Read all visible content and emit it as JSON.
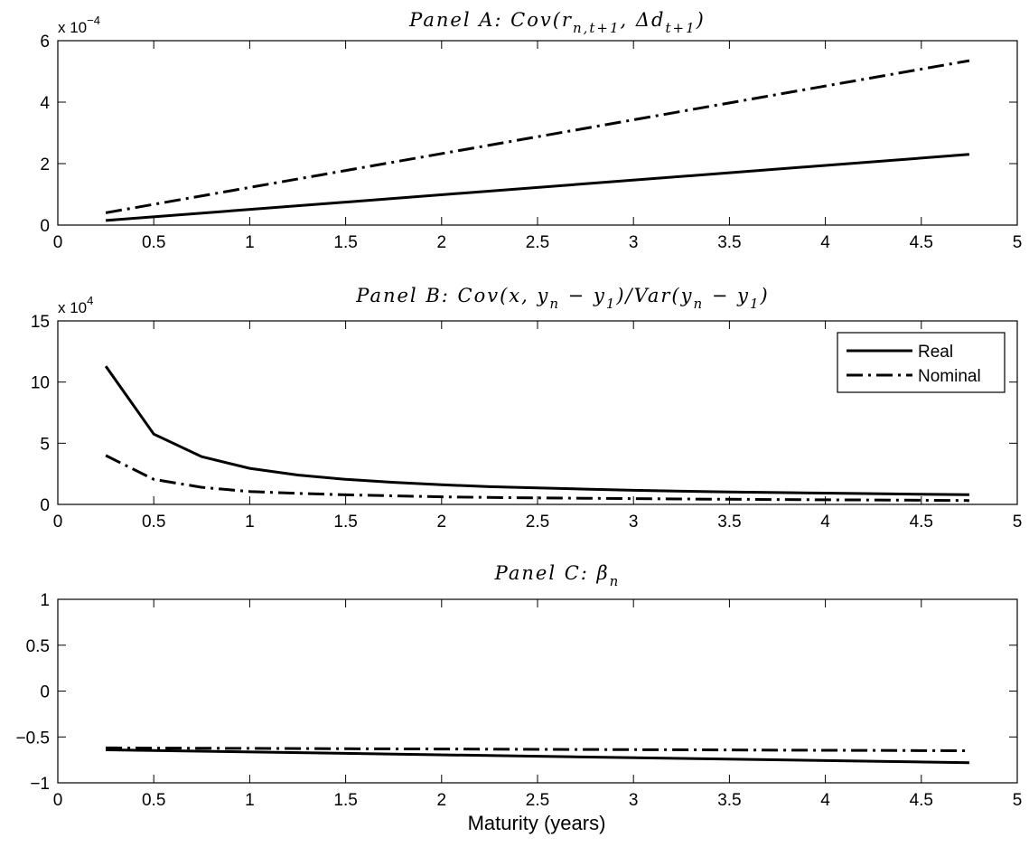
{
  "xlabel": "Maturity (years)",
  "chart_data": [
    {
      "type": "line",
      "title": "Panel A: Cov(r_{n,t+1}, Δd_{t+1})",
      "title_parts": {
        "prefix": "Panel A: Cov(r",
        "sub1": "n,t+1",
        "mid": ", Δd",
        "sub2": "t+1",
        "suffix": ")"
      },
      "multiplier": {
        "base": "x 10",
        "exp": "−4"
      },
      "xlim": [
        0,
        5
      ],
      "ylim": [
        0,
        6
      ],
      "xticks": [
        "0",
        "0.5",
        "1",
        "1.5",
        "2",
        "2.5",
        "3",
        "3.5",
        "4",
        "4.5",
        "5"
      ],
      "yticks": [
        "0",
        "2",
        "4",
        "6"
      ],
      "x": [
        0.25,
        4.75
      ],
      "series": [
        {
          "name": "Real",
          "style": "solid",
          "values": [
            0.15,
            2.3
          ]
        },
        {
          "name": "Nominal",
          "style": "dashdot",
          "values": [
            0.4,
            5.35
          ]
        }
      ]
    },
    {
      "type": "line",
      "title": "Panel B: Cov(x, y_n − y_1)/Var(y_n − y_1)",
      "title_parts": {
        "prefix": "Panel B: Cov(x, y",
        "sub1": "n",
        "mid": " − y",
        "sub2": "1",
        "mid2": ")/Var(y",
        "sub3": "n",
        "mid3": " − y",
        "sub4": "1",
        "suffix": ")"
      },
      "multiplier": {
        "base": "x 10",
        "exp": "4"
      },
      "xlim": [
        0,
        5
      ],
      "ylim": [
        0,
        15
      ],
      "xticks": [
        "0",
        "0.5",
        "1",
        "1.5",
        "2",
        "2.5",
        "3",
        "3.5",
        "4",
        "4.5",
        "5"
      ],
      "yticks": [
        "0",
        "5",
        "10",
        "15"
      ],
      "legend": {
        "position": "top-right",
        "entries": [
          "Real",
          "Nominal"
        ]
      },
      "x": [
        0.25,
        0.5,
        0.75,
        1.0,
        1.25,
        1.5,
        1.75,
        2.0,
        2.25,
        2.5,
        2.75,
        3.0,
        3.25,
        3.5,
        3.75,
        4.0,
        4.25,
        4.5,
        4.75
      ],
      "series": [
        {
          "name": "Real",
          "style": "solid",
          "values": [
            11.3,
            5.75,
            3.9,
            2.95,
            2.4,
            2.05,
            1.8,
            1.6,
            1.45,
            1.35,
            1.25,
            1.15,
            1.08,
            1.02,
            0.97,
            0.92,
            0.88,
            0.83,
            0.8
          ]
        },
        {
          "name": "Nominal",
          "style": "dashdot",
          "values": [
            4.0,
            2.05,
            1.4,
            1.05,
            0.9,
            0.78,
            0.7,
            0.62,
            0.57,
            0.53,
            0.5,
            0.47,
            0.44,
            0.42,
            0.4,
            0.38,
            0.36,
            0.34,
            0.32
          ]
        }
      ]
    },
    {
      "type": "line",
      "title": "Panel C: β_n",
      "title_parts": {
        "prefix": "Panel C: β",
        "sub1": "n"
      },
      "xlim": [
        0,
        5
      ],
      "ylim": [
        -1,
        1
      ],
      "xticks": [
        "0",
        "0.5",
        "1",
        "1.5",
        "2",
        "2.5",
        "3",
        "3.5",
        "4",
        "4.5",
        "5"
      ],
      "yticks": [
        "−1",
        "−0.5",
        "0",
        "0.5",
        "1"
      ],
      "x": [
        0.25,
        4.75
      ],
      "series": [
        {
          "name": "Real",
          "style": "solid",
          "values": [
            -0.64,
            -0.78
          ]
        },
        {
          "name": "Nominal",
          "style": "dashdot",
          "values": [
            -0.62,
            -0.65
          ]
        }
      ]
    }
  ]
}
